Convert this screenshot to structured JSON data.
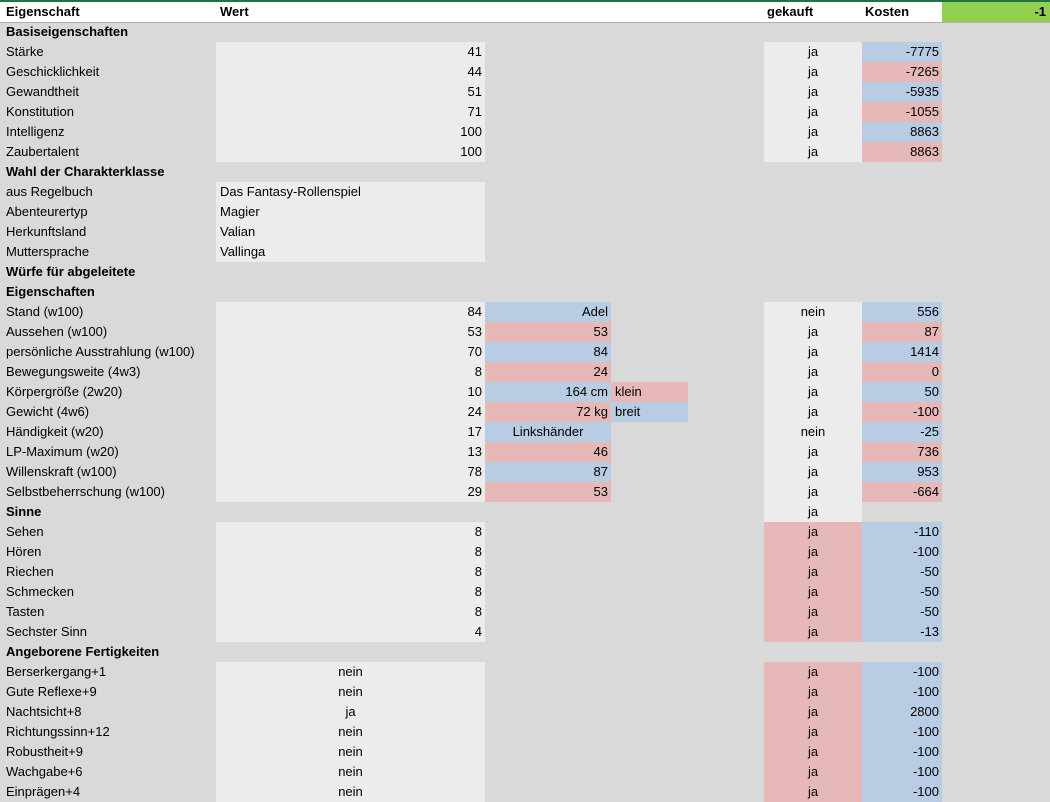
{
  "header": {
    "col_property": "Eigenschaft",
    "col_value": "Wert",
    "col_bought": "gekauft",
    "col_cost": "Kosten",
    "total": "-1"
  },
  "colors": {
    "blue": "#b8cce4",
    "pink": "#e6b8b7",
    "green": "#92d050",
    "input_gray": "#ececec"
  },
  "rows": [
    {
      "type": "section",
      "label": "Basiseigenschaften"
    },
    {
      "type": "base",
      "label": "Stärke",
      "value": "41",
      "bought": "ja",
      "cost": "-7775",
      "cost_color": "blue"
    },
    {
      "type": "base",
      "label": "Geschicklichkeit",
      "value": "44",
      "bought": "ja",
      "cost": "-7265",
      "cost_color": "pink"
    },
    {
      "type": "base",
      "label": "Gewandtheit",
      "value": "51",
      "bought": "ja",
      "cost": "-5935",
      "cost_color": "blue"
    },
    {
      "type": "base",
      "label": "Konstitution",
      "value": "71",
      "bought": "ja",
      "cost": "-1055",
      "cost_color": "pink"
    },
    {
      "type": "base",
      "label": "Intelligenz",
      "value": "100",
      "bought": "ja",
      "cost": "8863",
      "cost_color": "blue"
    },
    {
      "type": "base",
      "label": "Zaubertalent",
      "value": "100",
      "bought": "ja",
      "cost": "8863",
      "cost_color": "pink"
    },
    {
      "type": "section",
      "label": "Wahl der Charakterklasse"
    },
    {
      "type": "text",
      "label": "aus Regelbuch",
      "value": "Das Fantasy-Rollenspiel"
    },
    {
      "type": "text",
      "label": "Abenteurertyp",
      "value": "Magier"
    },
    {
      "type": "text",
      "label": "Herkunftsland",
      "value": "Valian"
    },
    {
      "type": "text",
      "label": "Muttersprache",
      "value": "Vallinga"
    },
    {
      "type": "section",
      "label": "Würfe für abgeleitete"
    },
    {
      "type": "section",
      "label": "Eigenschaften"
    },
    {
      "type": "derived",
      "label": "Stand (w100)",
      "value": "84",
      "derived": "Adel",
      "derived_color": "blue",
      "bought": "nein",
      "cost": "556",
      "cost_color": "blue"
    },
    {
      "type": "derived",
      "label": "Aussehen (w100)",
      "value": "53",
      "derived": "53",
      "derived_color": "pink",
      "bought": "ja",
      "cost": "87",
      "cost_color": "pink"
    },
    {
      "type": "derived",
      "label": "persönliche Ausstrahlung (w100)",
      "value": "70",
      "derived": "84",
      "derived_color": "blue",
      "bought": "ja",
      "cost": "1414",
      "cost_color": "blue"
    },
    {
      "type": "derived",
      "label": "Bewegungsweite (4w3)",
      "value": "8",
      "derived": "24",
      "derived_color": "pink",
      "bought": "ja",
      "cost": "0",
      "cost_color": "pink"
    },
    {
      "type": "derived",
      "label": "Körpergröße (2w20)",
      "value": "10",
      "derived": "164 cm",
      "derived_color": "blue",
      "extra": "klein",
      "extra_color": "pink",
      "bought": "ja",
      "cost": "50",
      "cost_color": "blue"
    },
    {
      "type": "derived",
      "label": "Gewicht (4w6)",
      "value": "24",
      "derived": "72 kg",
      "derived_color": "pink",
      "extra": "breit",
      "extra_color": "blue",
      "bought": "ja",
      "cost": "-100",
      "cost_color": "pink"
    },
    {
      "type": "derived",
      "label": "Händigkeit (w20)",
      "value": "17",
      "derived": "Linkshänder",
      "derived_color": "blue",
      "derived_align": "center",
      "bought": "nein",
      "cost": "-25",
      "cost_color": "blue"
    },
    {
      "type": "derived",
      "label": "LP-Maximum (w20)",
      "value": "13",
      "derived": "46",
      "derived_color": "pink",
      "bought": "ja",
      "cost": "736",
      "cost_color": "pink"
    },
    {
      "type": "derived",
      "label": "Willenskraft (w100)",
      "value": "78",
      "derived": "87",
      "derived_color": "blue",
      "bought": "ja",
      "cost": "953",
      "cost_color": "blue"
    },
    {
      "type": "derived",
      "label": "Selbstbeherrschung (w100)",
      "value": "29",
      "derived": "53",
      "derived_color": "pink",
      "bought": "ja",
      "cost": "-664",
      "cost_color": "pink"
    },
    {
      "type": "section",
      "label": "Sinne",
      "bought": "ja"
    },
    {
      "type": "sense",
      "label": "Sehen",
      "value": "8",
      "bought": "ja",
      "cost": "-110"
    },
    {
      "type": "sense",
      "label": "Hören",
      "value": "8",
      "bought": "ja",
      "cost": "-100"
    },
    {
      "type": "sense",
      "label": "Riechen",
      "value": "8",
      "bought": "ja",
      "cost": "-50"
    },
    {
      "type": "sense",
      "label": "Schmecken",
      "value": "8",
      "bought": "ja",
      "cost": "-50"
    },
    {
      "type": "sense",
      "label": "Tasten",
      "value": "8",
      "bought": "ja",
      "cost": "-50"
    },
    {
      "type": "sense",
      "label": "Sechster Sinn",
      "value": "4",
      "bought": "ja",
      "cost": "-13"
    },
    {
      "type": "section",
      "label": "Angeborene Fertigkeiten"
    },
    {
      "type": "skill",
      "label": "Berserkergang+1",
      "value": "nein",
      "bought": "ja",
      "cost": "-100"
    },
    {
      "type": "skill",
      "label": "Gute Reflexe+9",
      "value": "nein",
      "bought": "ja",
      "cost": "-100"
    },
    {
      "type": "skill",
      "label": "Nachtsicht+8",
      "value": "ja",
      "bought": "ja",
      "cost": "2800"
    },
    {
      "type": "skill",
      "label": "Richtungssinn+12",
      "value": "nein",
      "bought": "ja",
      "cost": "-100"
    },
    {
      "type": "skill",
      "label": "Robustheit+9",
      "value": "nein",
      "bought": "ja",
      "cost": "-100"
    },
    {
      "type": "skill",
      "label": "Wachgabe+6",
      "value": "nein",
      "bought": "ja",
      "cost": "-100"
    },
    {
      "type": "skill",
      "label": "Einprägen+4",
      "value": "nein",
      "bought": "ja",
      "cost": "-100"
    }
  ]
}
